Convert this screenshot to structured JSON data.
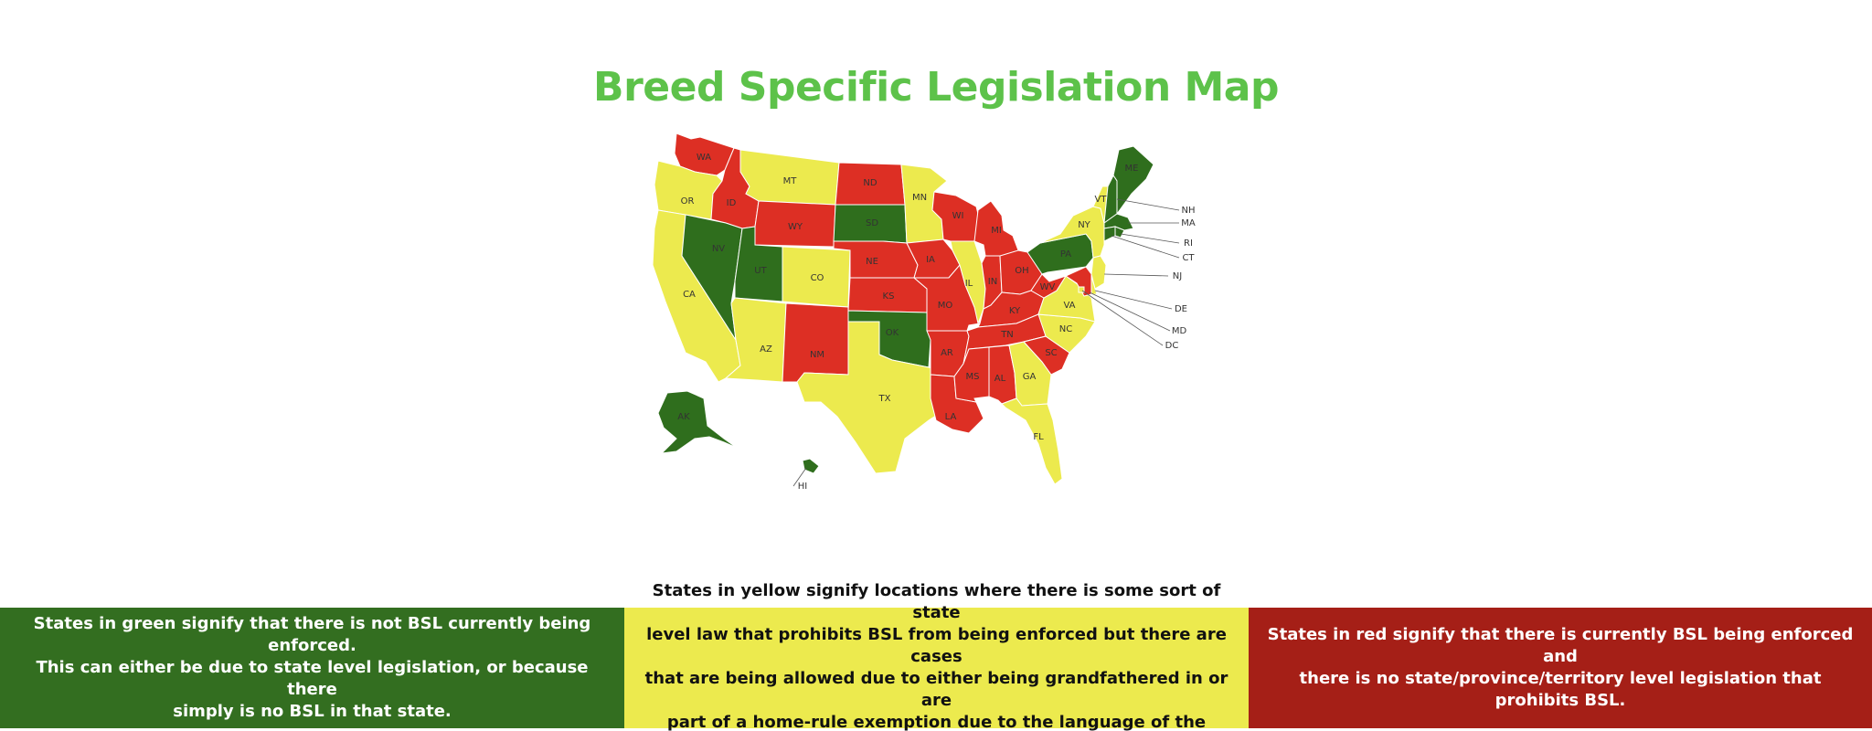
{
  "title": "Breed Specific Legislation Map",
  "colors": {
    "title": "#5dc24a",
    "green": "#2f6e1d",
    "yellow": "#ecea4e",
    "red": "#dd2f24",
    "legend_green": "#336e20",
    "legend_yellow": "#ecea4e",
    "legend_red": "#a51f17",
    "border": "#ffffff",
    "label": "#333333"
  },
  "map": {
    "states": [
      {
        "abbr": "WA",
        "status": "red"
      },
      {
        "abbr": "OR",
        "status": "yellow"
      },
      {
        "abbr": "CA",
        "status": "yellow"
      },
      {
        "abbr": "ID",
        "status": "red"
      },
      {
        "abbr": "NV",
        "status": "green"
      },
      {
        "abbr": "MT",
        "status": "yellow"
      },
      {
        "abbr": "WY",
        "status": "red"
      },
      {
        "abbr": "UT",
        "status": "green"
      },
      {
        "abbr": "AZ",
        "status": "yellow"
      },
      {
        "abbr": "CO",
        "status": "yellow"
      },
      {
        "abbr": "NM",
        "status": "red"
      },
      {
        "abbr": "ND",
        "status": "red"
      },
      {
        "abbr": "SD",
        "status": "green"
      },
      {
        "abbr": "NE",
        "status": "red"
      },
      {
        "abbr": "KS",
        "status": "red"
      },
      {
        "abbr": "OK",
        "status": "green"
      },
      {
        "abbr": "TX",
        "status": "yellow"
      },
      {
        "abbr": "MN",
        "status": "yellow"
      },
      {
        "abbr": "IA",
        "status": "red"
      },
      {
        "abbr": "MO",
        "status": "red"
      },
      {
        "abbr": "AR",
        "status": "red"
      },
      {
        "abbr": "LA",
        "status": "red"
      },
      {
        "abbr": "WI",
        "status": "red"
      },
      {
        "abbr": "IL",
        "status": "yellow"
      },
      {
        "abbr": "MI",
        "status": "red"
      },
      {
        "abbr": "IN",
        "status": "red"
      },
      {
        "abbr": "OH",
        "status": "red"
      },
      {
        "abbr": "KY",
        "status": "red"
      },
      {
        "abbr": "TN",
        "status": "red"
      },
      {
        "abbr": "MS",
        "status": "red"
      },
      {
        "abbr": "AL",
        "status": "red"
      },
      {
        "abbr": "GA",
        "status": "yellow"
      },
      {
        "abbr": "FL",
        "status": "yellow"
      },
      {
        "abbr": "SC",
        "status": "red"
      },
      {
        "abbr": "NC",
        "status": "yellow"
      },
      {
        "abbr": "VA",
        "status": "yellow"
      },
      {
        "abbr": "WV",
        "status": "red"
      },
      {
        "abbr": "PA",
        "status": "green"
      },
      {
        "abbr": "NY",
        "status": "yellow"
      },
      {
        "abbr": "VT",
        "status": "yellow"
      },
      {
        "abbr": "ME",
        "status": "green"
      },
      {
        "abbr": "NH",
        "status": "green"
      },
      {
        "abbr": "MA",
        "status": "green"
      },
      {
        "abbr": "RI",
        "status": "green"
      },
      {
        "abbr": "CT",
        "status": "green"
      },
      {
        "abbr": "NJ",
        "status": "yellow"
      },
      {
        "abbr": "DE",
        "status": "yellow"
      },
      {
        "abbr": "MD",
        "status": "red"
      },
      {
        "abbr": "DC",
        "status": "yellow"
      },
      {
        "abbr": "AK",
        "status": "green"
      },
      {
        "abbr": "HI",
        "status": "green"
      }
    ]
  },
  "legend": {
    "green": {
      "lines": [
        "States in green signify that there is not BSL currently being enforced.",
        "This can either be due to state level legislation, or because there",
        "simply is no BSL in that state."
      ]
    },
    "yellow": {
      "lines": [
        "States in yellow signify locations where there is some sort of state",
        "level law that prohibits BSL from being enforced but there are cases",
        "that are being allowed due to either being grandfathered in or are",
        "part of a home-rule exemption due to the language of the legislation."
      ]
    },
    "red": {
      "lines": [
        "States in red signify that there is currently BSL being enforced and",
        "there is no state/province/territory level legislation that prohibits BSL."
      ]
    }
  }
}
